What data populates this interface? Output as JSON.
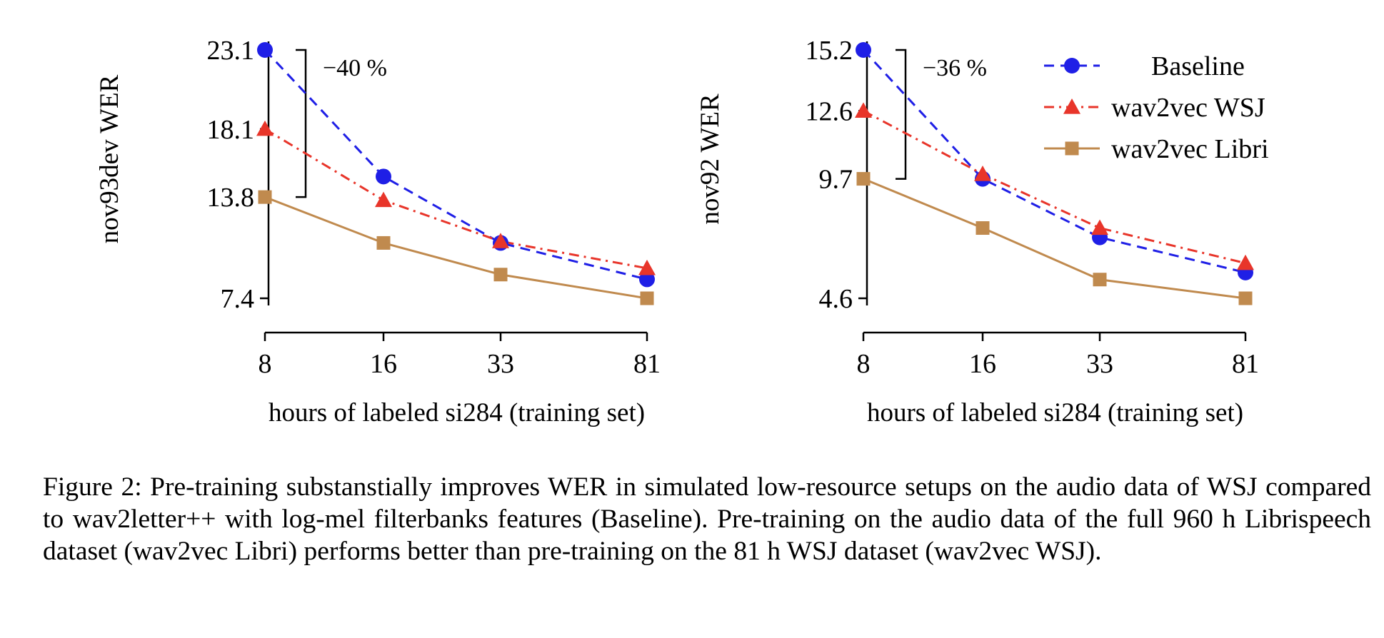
{
  "chart_data": [
    {
      "type": "line",
      "x": [
        8,
        16,
        33,
        81
      ],
      "xlabel": "hours of labeled si284 (training set)",
      "ylabel": "nov93dev WER",
      "yticks": [
        7.4,
        13.8,
        18.1,
        23.1
      ],
      "ytick_labels": [
        "7.4",
        "13.8",
        "18.1",
        "23.1"
      ],
      "xtick_labels": [
        "8",
        "16",
        "33",
        "81"
      ],
      "series": [
        {
          "name": "Baseline",
          "values": [
            23.1,
            15.1,
            10.9,
            8.6
          ]
        },
        {
          "name": "wav2vec WSJ",
          "values": [
            18.1,
            13.6,
            11.0,
            9.3
          ]
        },
        {
          "name": "wav2vec Libri",
          "values": [
            13.8,
            10.9,
            8.9,
            7.4
          ]
        }
      ],
      "annotation": {
        "text": "−40 %",
        "from": 23.1,
        "to": 13.8
      },
      "legend": false
    },
    {
      "type": "line",
      "x": [
        8,
        16,
        33,
        81
      ],
      "xlabel": "hours of labeled si284 (training set)",
      "ylabel": "nov92 WER",
      "yticks": [
        4.6,
        9.7,
        12.6,
        15.2
      ],
      "ytick_labels": [
        "4.6",
        "9.7",
        "12.6",
        "15.2"
      ],
      "xtick_labels": [
        "8",
        "16",
        "33",
        "81"
      ],
      "series": [
        {
          "name": "Baseline",
          "values": [
            15.2,
            9.7,
            7.2,
            5.7
          ]
        },
        {
          "name": "wav2vec WSJ",
          "values": [
            12.6,
            9.9,
            7.6,
            6.1
          ]
        },
        {
          "name": "wav2vec Libri",
          "values": [
            9.7,
            7.6,
            5.4,
            4.6
          ]
        }
      ],
      "annotation": {
        "text": "−36 %",
        "from": 15.2,
        "to": 9.7
      },
      "legend": "top-right"
    }
  ],
  "legend_entries": [
    {
      "name": "Baseline",
      "color": "#1f1fe6",
      "marker": "circle",
      "dash": "dashed"
    },
    {
      "name": "wav2vec WSJ",
      "color": "#e8352a",
      "marker": "triangle",
      "dash": "dashdot"
    },
    {
      "name": "wav2vec Libri",
      "color": "#c08a4e",
      "marker": "square",
      "dash": "solid"
    }
  ],
  "caption": "Figure 2: Pre-training substanstially improves WER in simulated low-resource setups on the audio data of WSJ compared to wav2letter++ with log-mel filterbanks features (Baseline). Pre-training on the audio data of the full 960 h Librispeech dataset (wav2vec Libri) performs better than pre-training on the 81 h WSJ dataset (wav2vec WSJ)."
}
